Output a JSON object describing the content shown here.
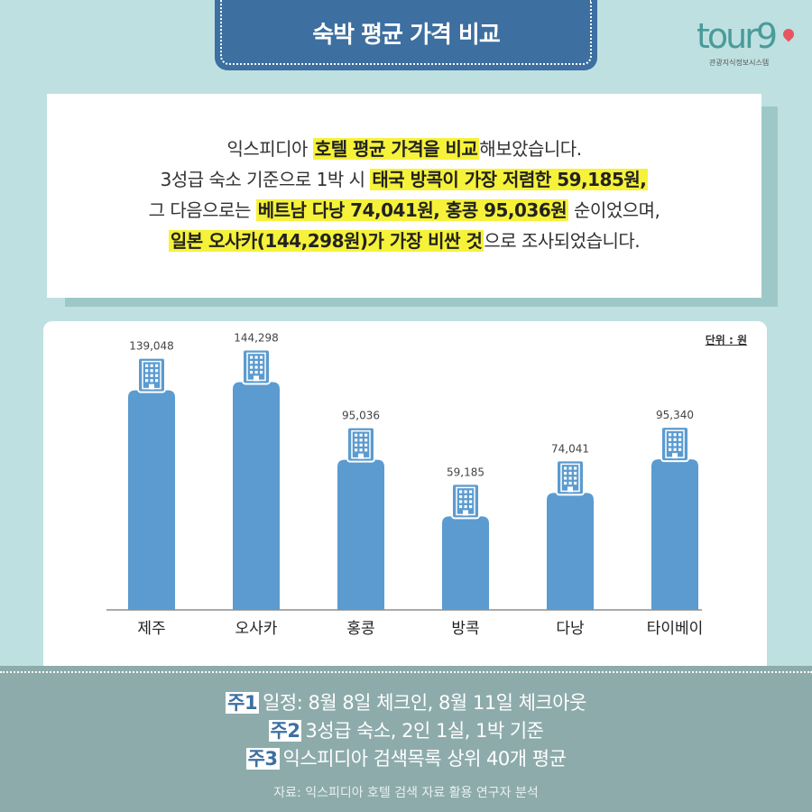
{
  "header": {
    "title": "숙박 평균 가격 비교"
  },
  "logo": {
    "word": "tour",
    "g": "9",
    "subtitle": "관광지식정보시스템"
  },
  "summary": {
    "lines": [
      [
        {
          "t": "익스피디아 ",
          "h": false
        },
        {
          "t": "호텔 평균 가격을 비교",
          "h": true
        },
        {
          "t": "해보았습니다.",
          "h": false
        }
      ],
      [
        {
          "t": "3성급 숙소 기준으로 1박 시 ",
          "h": false
        },
        {
          "t": "태국 방콕이 가장 저렴한 59,185원,",
          "h": true
        }
      ],
      [
        {
          "t": "그 다음으로는 ",
          "h": false
        },
        {
          "t": "베트남 다낭 74,041원, 홍콩 95,036원",
          "h": true
        },
        {
          "t": " 순이었으며,",
          "h": false
        }
      ],
      [
        {
          "t": "일본 오사카(144,298원)가 가장 비싼 것",
          "h": true
        },
        {
          "t": "으로 조사되었습니다.",
          "h": false
        }
      ]
    ]
  },
  "chart_data": {
    "type": "bar",
    "unit_label": "단위 : 원",
    "categories": [
      "제주",
      "오사카",
      "홍콩",
      "방콕",
      "다낭",
      "타이베이"
    ],
    "values": [
      139048,
      144298,
      95036,
      59185,
      74041,
      95340
    ],
    "value_labels": [
      "139,048",
      "144,298",
      "95,036",
      "59,185",
      "74,041",
      "95,340"
    ],
    "ylim": [
      0,
      160000
    ],
    "bar_color": "#5b9bd0",
    "icon": "building-icon"
  },
  "footer": {
    "notes": [
      {
        "tag": "주1",
        "text": "일정: 8월 8일 체크인, 8월 11일 체크아웃"
      },
      {
        "tag": "주2",
        "text": "3성급 숙소, 2인 1실, 1박 기준"
      },
      {
        "tag": "주3",
        "text": "익스피디아 검색목록 상위 40개 평균"
      }
    ],
    "source": "자료: 익스피디아 호텔 검색 자료 활용 연구자 분석"
  },
  "colors": {
    "background": "#bfe0e0",
    "title_tab": "#3d6fa0",
    "highlight": "#f6f23a",
    "footer": "#8eabab"
  }
}
